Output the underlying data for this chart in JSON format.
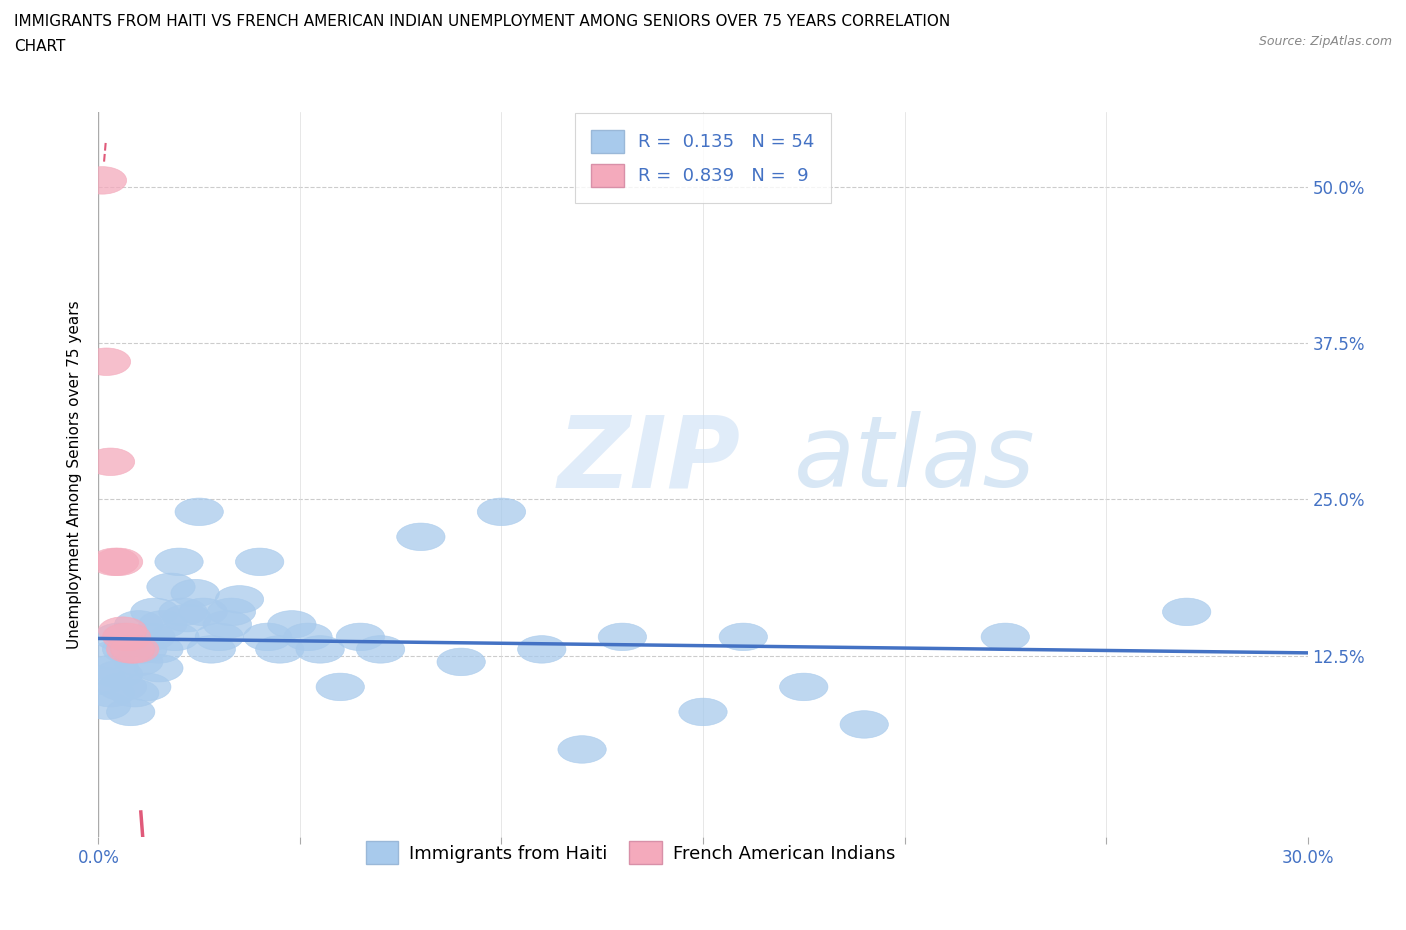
{
  "title_line1": "IMMIGRANTS FROM HAITI VS FRENCH AMERICAN INDIAN UNEMPLOYMENT AMONG SENIORS OVER 75 YEARS CORRELATION",
  "title_line2": "CHART",
  "source": "Source: ZipAtlas.com",
  "ylabel": "Unemployment Among Seniors over 75 years",
  "xlim": [
    0.0,
    0.3
  ],
  "ylim": [
    -0.02,
    0.56
  ],
  "xticks": [
    0.0,
    0.05,
    0.1,
    0.15,
    0.2,
    0.25,
    0.3
  ],
  "xticklabels": [
    "0.0%",
    "",
    "",
    "",
    "",
    "",
    "30.0%"
  ],
  "yticks": [
    0.0,
    0.125,
    0.25,
    0.375,
    0.5
  ],
  "yticklabels": [
    "",
    "12.5%",
    "25.0%",
    "37.5%",
    "50.0%"
  ],
  "haiti_color": "#a8caec",
  "haiti_color_line": "#4472c4",
  "fai_color": "#f4aabc",
  "fai_color_line": "#e05a7a",
  "R_haiti": 0.135,
  "N_haiti": 54,
  "R_fai": 0.839,
  "N_fai": 9,
  "haiti_scatter_x": [
    0.001,
    0.002,
    0.003,
    0.003,
    0.004,
    0.005,
    0.005,
    0.006,
    0.007,
    0.008,
    0.009,
    0.01,
    0.01,
    0.011,
    0.012,
    0.013,
    0.014,
    0.015,
    0.015,
    0.016,
    0.018,
    0.019,
    0.02,
    0.021,
    0.022,
    0.024,
    0.025,
    0.026,
    0.028,
    0.03,
    0.032,
    0.033,
    0.035,
    0.04,
    0.042,
    0.045,
    0.048,
    0.052,
    0.055,
    0.06,
    0.065,
    0.07,
    0.08,
    0.09,
    0.1,
    0.11,
    0.12,
    0.13,
    0.15,
    0.16,
    0.175,
    0.19,
    0.225,
    0.27
  ],
  "haiti_scatter_y": [
    0.105,
    0.085,
    0.125,
    0.095,
    0.115,
    0.11,
    0.14,
    0.1,
    0.13,
    0.08,
    0.095,
    0.12,
    0.15,
    0.13,
    0.1,
    0.14,
    0.16,
    0.13,
    0.115,
    0.15,
    0.18,
    0.14,
    0.2,
    0.16,
    0.155,
    0.175,
    0.24,
    0.16,
    0.13,
    0.14,
    0.15,
    0.16,
    0.17,
    0.2,
    0.14,
    0.13,
    0.15,
    0.14,
    0.13,
    0.1,
    0.14,
    0.13,
    0.22,
    0.12,
    0.24,
    0.13,
    0.05,
    0.14,
    0.08,
    0.14,
    0.1,
    0.07,
    0.14,
    0.16
  ],
  "fai_scatter_x": [
    0.001,
    0.002,
    0.003,
    0.004,
    0.005,
    0.006,
    0.007,
    0.008,
    0.009
  ],
  "fai_scatter_y": [
    0.505,
    0.36,
    0.28,
    0.2,
    0.2,
    0.145,
    0.14,
    0.13,
    0.13
  ],
  "fai_line_x_start": 0.0,
  "fai_line_x_end": 0.01,
  "bg_color": "#ffffff",
  "grid_color": "#cccccc",
  "tick_label_color": "#4472c4",
  "title_fontsize": 11,
  "axis_label_fontsize": 11,
  "tick_fontsize": 12,
  "legend_fontsize": 13
}
